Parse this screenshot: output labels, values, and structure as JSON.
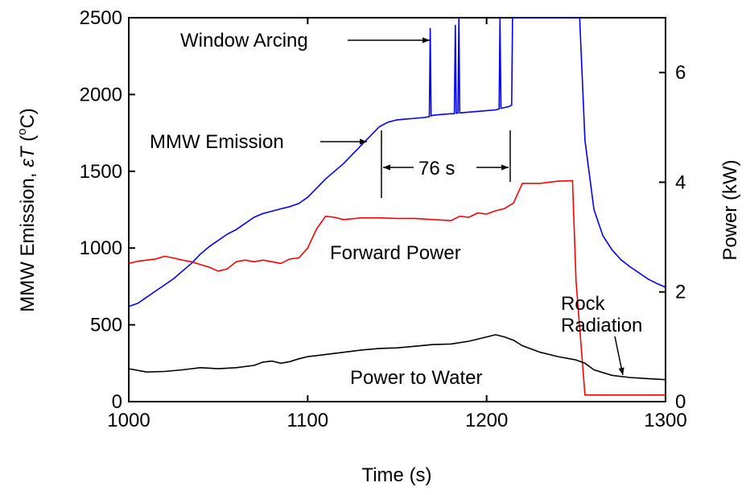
{
  "chart_data": {
    "type": "line",
    "x_label": "Time (s)",
    "y_label_prefix": "MMW Emission, ",
    "y_label_var_eps": "ε",
    "y_label_var_t": "T",
    "y_label_open": " (",
    "y_label_degree": "o",
    "y_label_close": "C)",
    "y2_label": "Power (kW)",
    "xlim": [
      1000,
      1300
    ],
    "ylim": [
      0,
      2500
    ],
    "y2lim": [
      0,
      7
    ],
    "x_ticks": [
      1000,
      1100,
      1200,
      1300
    ],
    "y_ticks": [
      0,
      500,
      1000,
      1500,
      2000,
      2500
    ],
    "y2_ticks": [
      0,
      2,
      4,
      6
    ],
    "grid": false,
    "series": [
      {
        "name": "MMW Emission",
        "axis": "left",
        "color": "#0000ff",
        "x": [
          1000,
          1005,
          1010,
          1015,
          1020,
          1025,
          1030,
          1035,
          1040,
          1045,
          1050,
          1055,
          1060,
          1065,
          1070,
          1075,
          1080,
          1085,
          1090,
          1095,
          1100,
          1105,
          1110,
          1115,
          1120,
          1125,
          1130,
          1135,
          1140,
          1145,
          1150,
          1155,
          1160,
          1165,
          1168,
          1168.5,
          1169,
          1170,
          1175,
          1180,
          1182,
          1182.5,
          1183,
          1184,
          1184.5,
          1185,
          1190,
          1195,
          1200,
          1205,
          1207,
          1207.5,
          1208,
          1210,
          1212,
          1214,
          1214.5,
          1215,
          1250,
          1252,
          1255,
          1260,
          1265,
          1270,
          1275,
          1280,
          1285,
          1290,
          1295,
          1300
        ],
        "y": [
          620,
          640,
          680,
          720,
          760,
          800,
          850,
          900,
          960,
          1010,
          1050,
          1090,
          1120,
          1160,
          1200,
          1225,
          1240,
          1255,
          1270,
          1290,
          1330,
          1390,
          1450,
          1500,
          1550,
          1610,
          1670,
          1730,
          1790,
          1820,
          1835,
          1840,
          1845,
          1850,
          1855,
          2430,
          1860,
          1865,
          1870,
          1875,
          1875,
          2450,
          1878,
          1880,
          2500,
          1880,
          1885,
          1890,
          1895,
          1900,
          1905,
          2500,
          1910,
          1915,
          1920,
          1930,
          2500,
          2500,
          2500,
          2500,
          1700,
          1250,
          1080,
          990,
          925,
          880,
          840,
          800,
          770,
          745
        ]
      },
      {
        "name": "Forward Power",
        "axis": "right",
        "color": "#ff0000",
        "x": [
          1000,
          1005,
          1010,
          1015,
          1020,
          1025,
          1030,
          1035,
          1040,
          1045,
          1050,
          1055,
          1060,
          1065,
          1070,
          1075,
          1080,
          1085,
          1090,
          1095,
          1100,
          1105,
          1110,
          1115,
          1120,
          1130,
          1140,
          1150,
          1160,
          1170,
          1180,
          1185,
          1190,
          1195,
          1200,
          1205,
          1210,
          1215,
          1220,
          1230,
          1240,
          1248,
          1250,
          1255,
          1260,
          1270,
          1280,
          1290,
          1300
        ],
        "y": [
          2.52,
          2.56,
          2.58,
          2.6,
          2.65,
          2.62,
          2.58,
          2.55,
          2.5,
          2.45,
          2.38,
          2.42,
          2.55,
          2.58,
          2.55,
          2.58,
          2.55,
          2.52,
          2.6,
          2.62,
          2.8,
          3.15,
          3.38,
          3.36,
          3.32,
          3.35,
          3.35,
          3.34,
          3.34,
          3.32,
          3.3,
          3.38,
          3.36,
          3.44,
          3.42,
          3.48,
          3.52,
          3.62,
          3.98,
          3.98,
          4.02,
          4.03,
          2.2,
          0.12,
          0.12,
          0.12,
          0.12,
          0.12,
          0.12
        ]
      },
      {
        "name": "Power to Water",
        "axis": "right",
        "color": "#000000",
        "x": [
          1000,
          1010,
          1020,
          1030,
          1040,
          1050,
          1060,
          1070,
          1075,
          1080,
          1085,
          1090,
          1095,
          1100,
          1105,
          1110,
          1120,
          1130,
          1140,
          1150,
          1160,
          1170,
          1180,
          1190,
          1200,
          1205,
          1210,
          1215,
          1220,
          1230,
          1240,
          1250,
          1255,
          1260,
          1270,
          1280,
          1290,
          1300
        ],
        "y": [
          0.6,
          0.54,
          0.55,
          0.58,
          0.62,
          0.6,
          0.62,
          0.66,
          0.72,
          0.74,
          0.7,
          0.73,
          0.78,
          0.82,
          0.84,
          0.86,
          0.9,
          0.94,
          0.97,
          0.98,
          1.01,
          1.04,
          1.05,
          1.1,
          1.18,
          1.22,
          1.18,
          1.12,
          1.02,
          0.9,
          0.82,
          0.76,
          0.7,
          0.58,
          0.48,
          0.44,
          0.42,
          0.4
        ]
      }
    ],
    "annotations": {
      "window_arcing": "Window Arcing",
      "mmw_emission": "MMW Emission",
      "duration": "76 s",
      "forward_power": "Forward Power",
      "rock": "Rock",
      "radiation": "Radiation",
      "power_to_water": "Power to Water"
    }
  }
}
